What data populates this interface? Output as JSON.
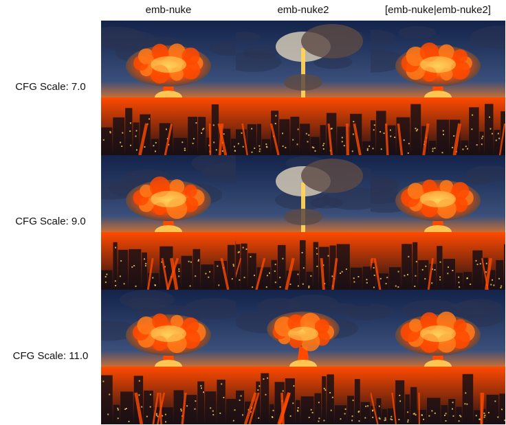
{
  "grid": {
    "columns": [
      "emb-nuke",
      "emb-nuke2",
      "[emb-nuke|emb-nuke2]"
    ],
    "rows": [
      "CFG Scale: 7.0",
      "CFG Scale: 9.0",
      "CFG Scale: 11.0"
    ]
  },
  "colors": {
    "sky_dark": "#13234a",
    "sky_mid": "#3a4f7a",
    "glow": "#ff7a1a",
    "fire": "#ff4a00",
    "hot": "#ffd35a",
    "smoke": "#5d4a45",
    "city": "#1a0f14"
  }
}
